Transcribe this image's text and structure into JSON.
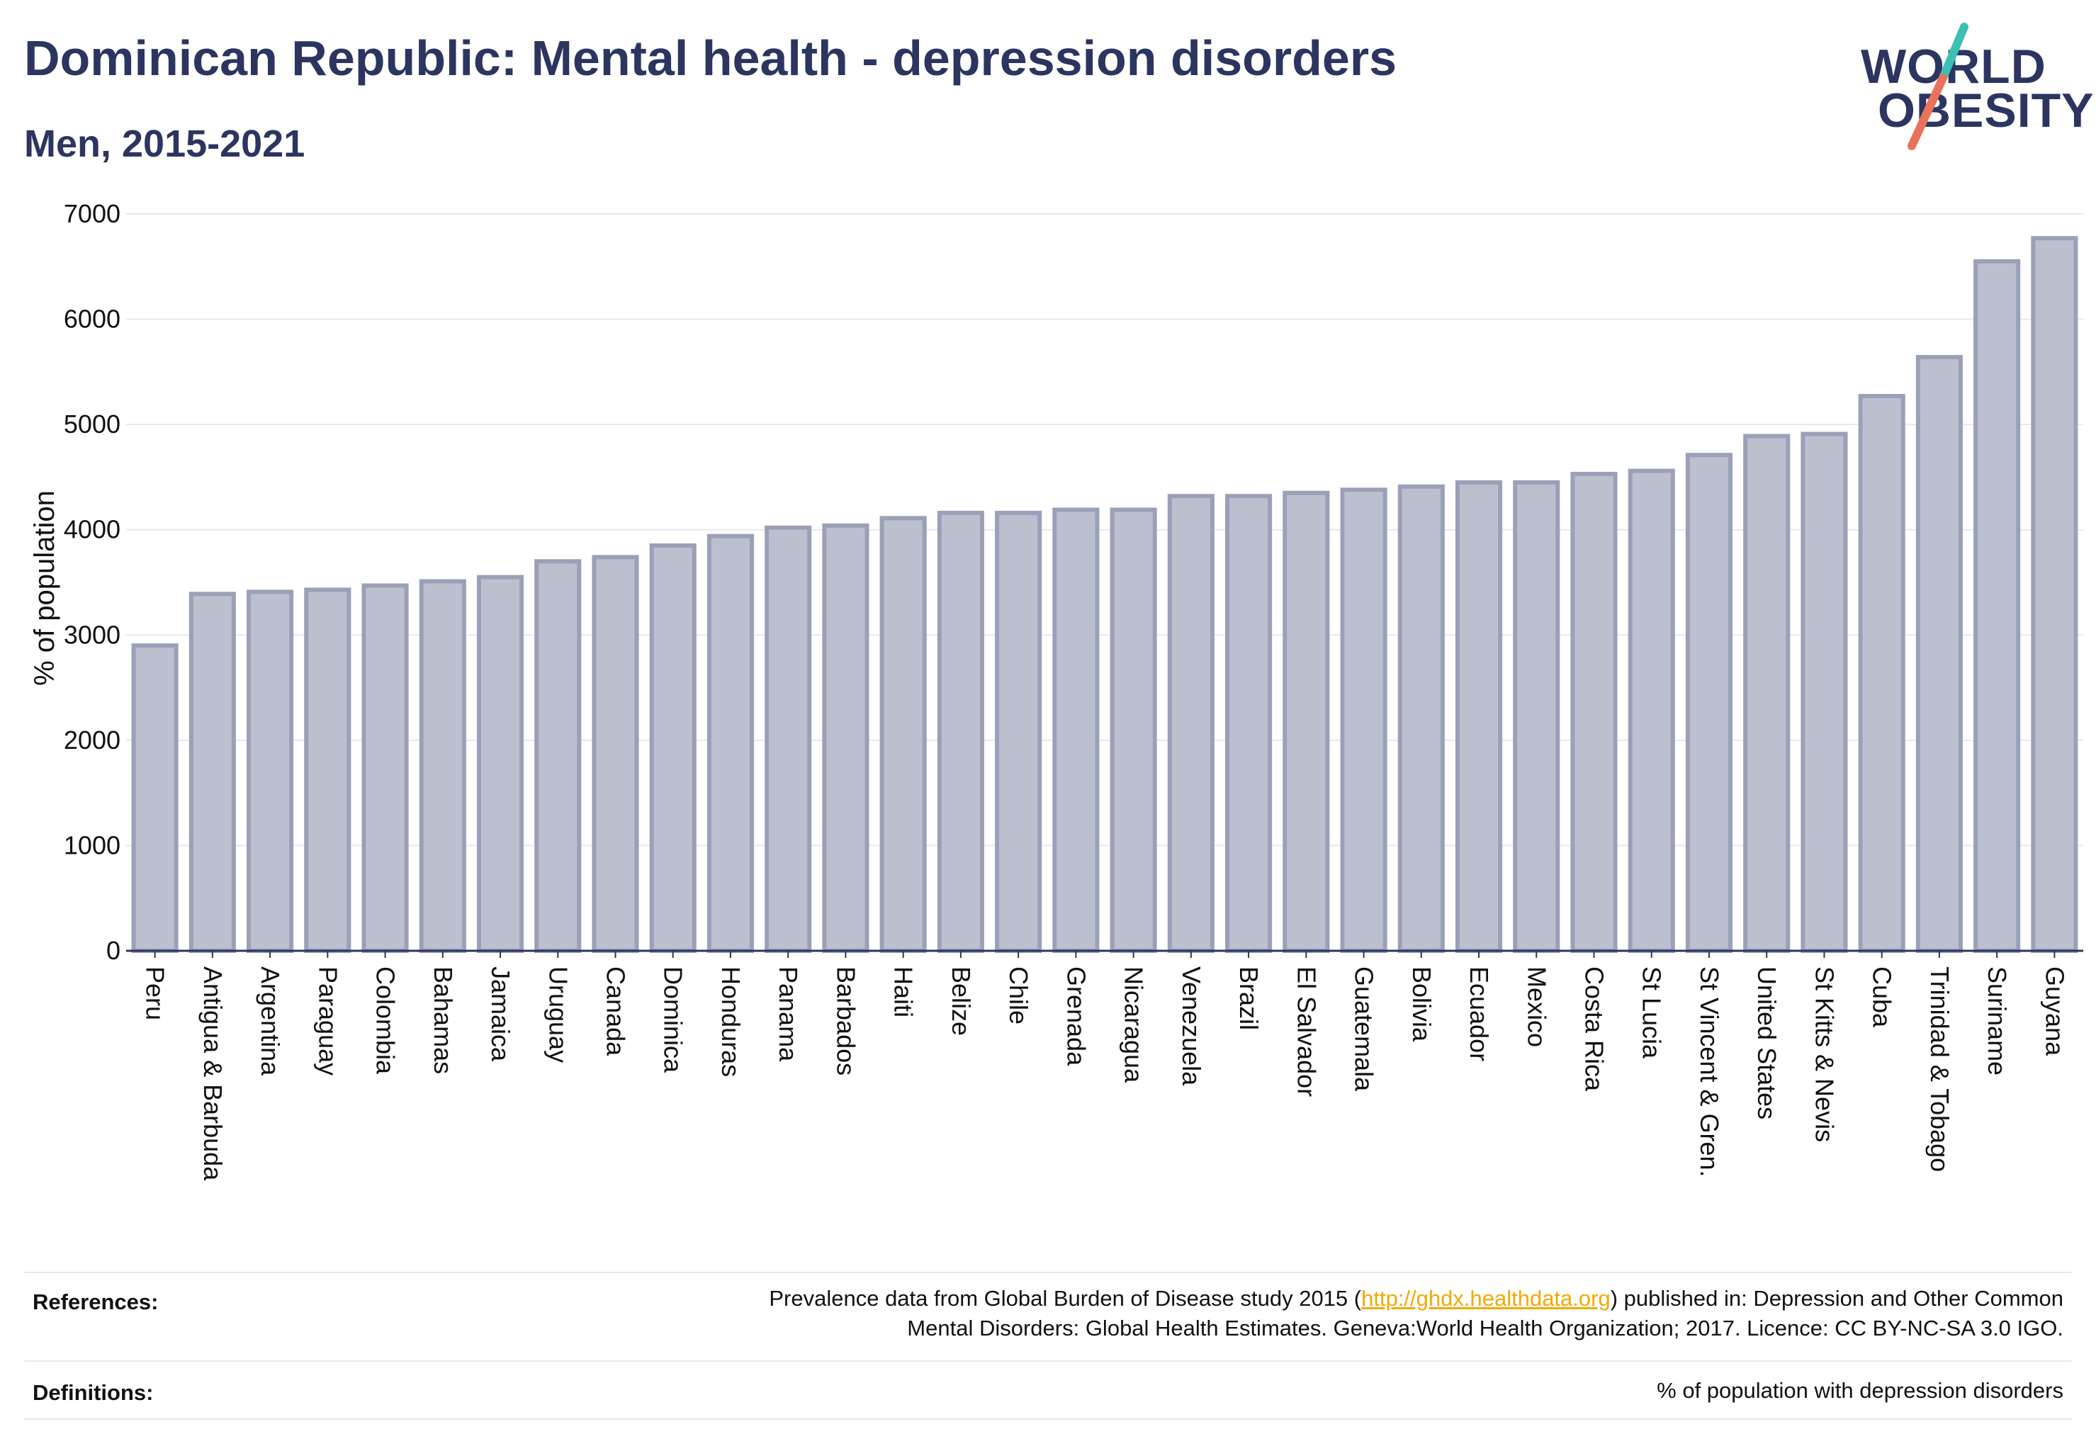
{
  "header": {
    "title": "Dominican Republic: Mental health - depression disorders",
    "subtitle": "Men, 2015-2021"
  },
  "logo": {
    "line1": "WORLD",
    "line2": "OBESITY",
    "accent_colors": [
      "#3cbfb4",
      "#e8735a"
    ]
  },
  "colors": {
    "bar_fill": "#bcc0ce",
    "bar_stroke": "#9aa0b8",
    "axis": "#2b3560",
    "grid": "#e6e8f0",
    "text": "#111111"
  },
  "chart_data": {
    "type": "bar",
    "ylabel": "% of population",
    "ylim": [
      0,
      7000
    ],
    "yticks": [
      0,
      1000,
      2000,
      3000,
      4000,
      5000,
      6000,
      7000
    ],
    "grid": true,
    "categories": [
      "Peru",
      "Antigua & Barbuda",
      "Argentina",
      "Paraguay",
      "Colombia",
      "Bahamas",
      "Jamaica",
      "Uruguay",
      "Canada",
      "Dominica",
      "Honduras",
      "Panama",
      "Barbados",
      "Haiti",
      "Belize",
      "Chile",
      "Grenada",
      "Nicaragua",
      "Venezuela",
      "Brazil",
      "El Salvador",
      "Guatemala",
      "Bolivia",
      "Ecuador",
      "Mexico",
      "Costa Rica",
      "St Lucia",
      "St Vincent & Gren.",
      "United States",
      "St Kitts & Nevis",
      "Cuba",
      "Trinidad & Tobago",
      "Suriname",
      "Guyana"
    ],
    "values": [
      2900,
      3390,
      3410,
      3430,
      3470,
      3510,
      3550,
      3700,
      3740,
      3850,
      3940,
      4020,
      4040,
      4110,
      4160,
      4160,
      4190,
      4190,
      4320,
      4320,
      4350,
      4380,
      4410,
      4450,
      4450,
      4530,
      4560,
      4710,
      4890,
      4910,
      5270,
      5640,
      6550,
      6770
    ]
  },
  "footer": {
    "references_label": "References:",
    "references_line1_pre": "Prevalence data from Global Burden of Disease study 2015 (",
    "references_link": "http://ghdx.healthdata.org",
    "references_line1_post": ") published in: Depression and Other Common",
    "references_line2": "Mental Disorders: Global Health Estimates. Geneva:World Health Organization; 2017. Licence: CC BY-NC-SA 3.0 IGO.",
    "definitions_label": "Definitions:",
    "definitions_text": "% of population with depression disorders"
  }
}
